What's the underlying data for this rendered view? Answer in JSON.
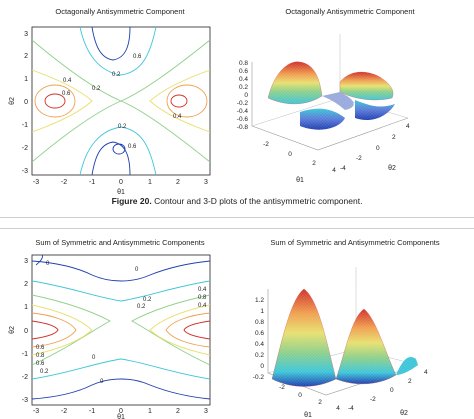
{
  "figure_top": {
    "left_title": "Octagonally Antisymmetric Component",
    "right_title": "Octagonally Antisymmetric Component",
    "contour_labels": [
      "0.6",
      "0.4",
      "0.2",
      "0.2",
      "0.6",
      "0.4",
      "0.2",
      "0.6"
    ],
    "x_ticks": [
      "-3",
      "-2",
      "-1",
      "0",
      "1",
      "2",
      "3"
    ],
    "y_ticks": [
      "3",
      "2",
      "1",
      "0",
      "-1",
      "-2",
      "-3"
    ],
    "z_ticks": [
      "0.8",
      "0.6",
      "0.4",
      "0.2",
      "0",
      "-0.2",
      "-0.4",
      "-0.6",
      "-0.8"
    ],
    "left_xlabel": "θ1",
    "left_ylabel": "θ2",
    "right_x_ticks": [
      "-2",
      "0",
      "2",
      "4"
    ],
    "right_y_ticks": [
      "-4",
      "-2",
      "0",
      "2",
      "4"
    ],
    "right_xlabel": "θ1",
    "right_ylabel": "θ2",
    "caption_label": "Figure 20.",
    "caption_text": " Contour and 3-D plots of the antisymmetric component."
  },
  "figure_bottom": {
    "left_title": "Sum of Symmetric and Antisymmetric Components",
    "right_title": "Sum of Symmetric and Antisymmetric Components",
    "contour_labels": [
      "0",
      "0",
      "0.2",
      "0.2",
      "0.4",
      "0.8",
      "0.4",
      "0.6",
      "0.8",
      "0.6",
      "0.2",
      "0",
      "0"
    ],
    "x_ticks": [
      "-3",
      "-2",
      "-1",
      "0",
      "1",
      "2",
      "3"
    ],
    "y_ticks": [
      "3",
      "2",
      "1",
      "0",
      "-1",
      "-2",
      "-3"
    ],
    "z_ticks": [
      "1.2",
      "1",
      "0.8",
      "0.6",
      "0.4",
      "0.2",
      "0",
      "-0.2"
    ],
    "left_xlabel": "θ1",
    "left_ylabel": "θ2",
    "right_x_ticks": [
      "-2",
      "0",
      "2",
      "4"
    ],
    "right_y_ticks": [
      "-4",
      "-2",
      "0",
      "2",
      "4"
    ],
    "right_xlabel": "θ1",
    "right_ylabel": "θ2"
  },
  "colors": {
    "blue": "#1f3fb0",
    "cyan": "#3ec6d8",
    "green": "#8fd08a",
    "yellow": "#e8e070",
    "orange": "#f0a050",
    "red": "#d0302a"
  }
}
